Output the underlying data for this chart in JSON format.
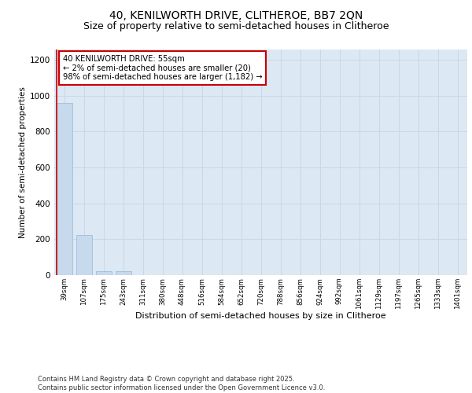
{
  "title": "40, KENILWORTH DRIVE, CLITHEROE, BB7 2QN",
  "subtitle": "Size of property relative to semi-detached houses in Clitheroe",
  "xlabel": "Distribution of semi-detached houses by size in Clitheroe",
  "ylabel": "Number of semi-detached properties",
  "categories": [
    "39sqm",
    "107sqm",
    "175sqm",
    "243sqm",
    "311sqm",
    "380sqm",
    "448sqm",
    "516sqm",
    "584sqm",
    "652sqm",
    "720sqm",
    "788sqm",
    "856sqm",
    "924sqm",
    "992sqm",
    "1061sqm",
    "1129sqm",
    "1197sqm",
    "1265sqm",
    "1333sqm",
    "1401sqm"
  ],
  "values": [
    960,
    225,
    20,
    20,
    0,
    0,
    0,
    0,
    0,
    0,
    0,
    0,
    0,
    0,
    0,
    0,
    0,
    0,
    0,
    0,
    0
  ],
  "bar_color": "#c6d9ed",
  "bar_edge_color": "#a0bfd8",
  "annotation_text": "40 KENILWORTH DRIVE: 55sqm\n← 2% of semi-detached houses are smaller (20)\n98% of semi-detached houses are larger (1,182) →",
  "annotation_box_color": "#ffffff",
  "annotation_box_edge": "#cc0000",
  "ylim": [
    0,
    1260
  ],
  "yticks": [
    0,
    200,
    400,
    600,
    800,
    1000,
    1200
  ],
  "grid_color": "#c8d8e8",
  "background_color": "#dce8f4",
  "footer_text": "Contains HM Land Registry data © Crown copyright and database right 2025.\nContains public sector information licensed under the Open Government Licence v3.0.",
  "title_fontsize": 10,
  "subtitle_fontsize": 9,
  "red_line_index": 0
}
